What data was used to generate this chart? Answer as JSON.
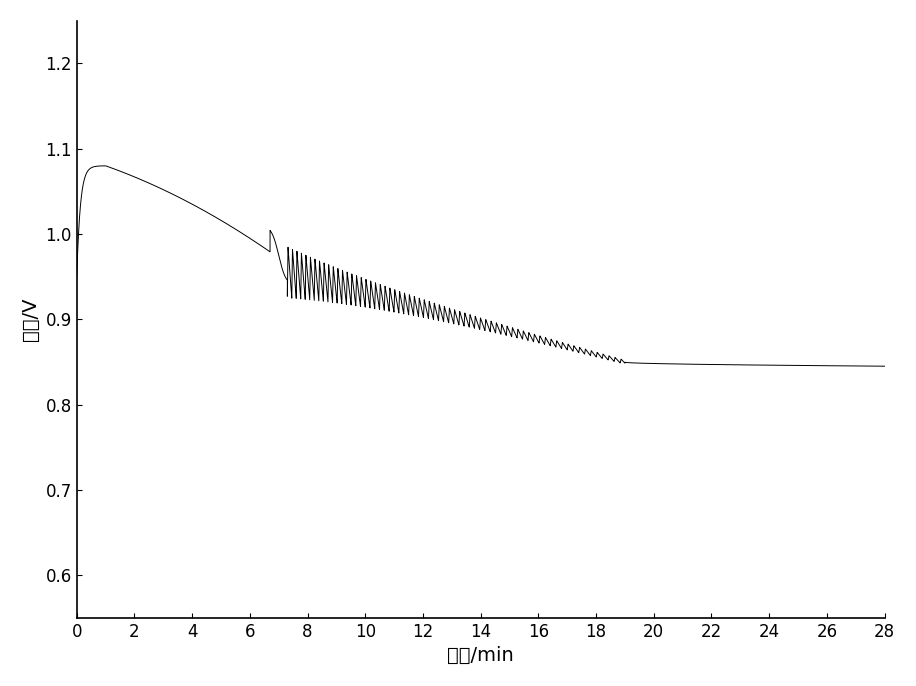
{
  "xlabel": "时间/min",
  "ylabel": "电压/V",
  "xlim": [
    0,
    28
  ],
  "ylim": [
    0.55,
    1.25
  ],
  "xticks": [
    0,
    2,
    4,
    6,
    8,
    10,
    12,
    14,
    16,
    18,
    20,
    22,
    24,
    26,
    28
  ],
  "yticks": [
    0.6,
    0.7,
    0.8,
    0.9,
    1.0,
    1.1,
    1.2
  ],
  "line_color": "#000000",
  "background_color": "#ffffff",
  "figsize": [
    9.16,
    6.86
  ],
  "dpi": 100
}
